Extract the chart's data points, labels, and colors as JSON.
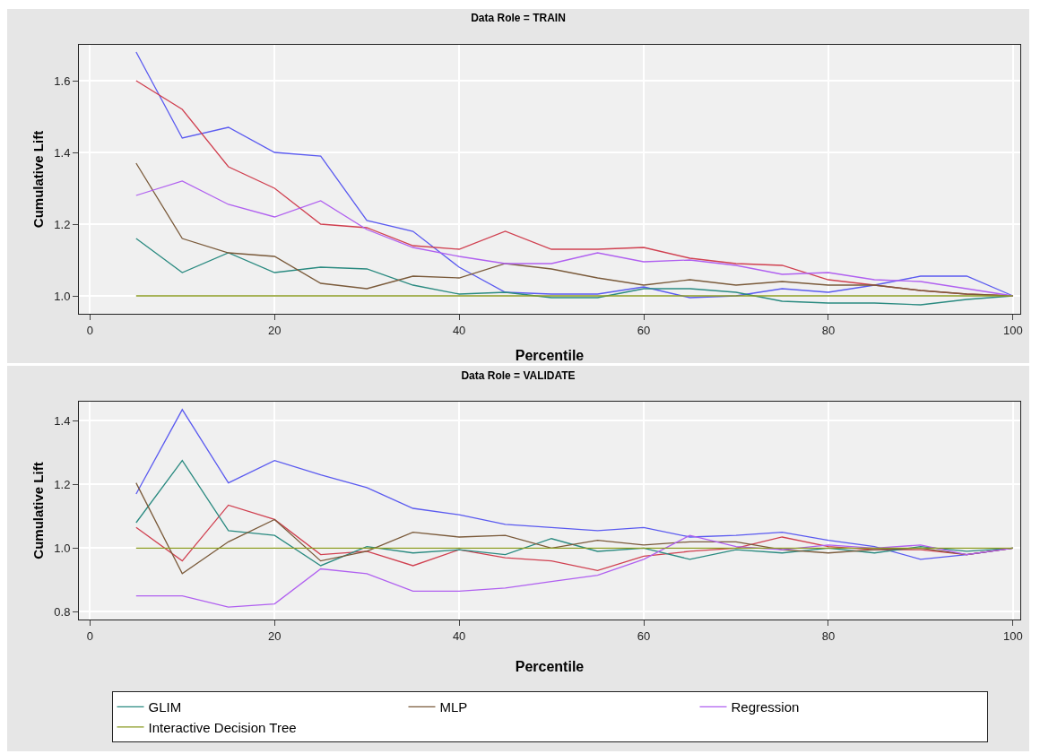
{
  "chart_data": [
    {
      "type": "line",
      "title": "Data Role = TRAIN",
      "xlabel": "Percentile",
      "ylabel": "Cumulative Lift",
      "x": [
        5,
        10,
        15,
        20,
        25,
        30,
        35,
        40,
        45,
        50,
        55,
        60,
        65,
        70,
        75,
        80,
        85,
        90,
        95,
        100
      ],
      "xlim": [
        -1.2,
        100.8
      ],
      "xticks": [
        0,
        20,
        40,
        60,
        80,
        100
      ],
      "ylim": [
        0.95,
        1.7
      ],
      "yticks": [
        {
          "value": 1,
          "label": "1.0"
        },
        1.2,
        1.4,
        1.6
      ],
      "grid": true,
      "legend": false,
      "series": [
        {
          "color": "#5a5af0",
          "values": [
            1.68,
            1.44,
            1.47,
            1.4,
            1.39,
            1.21,
            1.18,
            1.08,
            1.01,
            1.005,
            1.005,
            1.025,
            0.995,
            1.0,
            1.02,
            1.01,
            1.03,
            1.055,
            1.055,
            1.0
          ]
        },
        {
          "color": "#d04050",
          "values": [
            1.6,
            1.52,
            1.36,
            1.3,
            1.2,
            1.19,
            1.14,
            1.13,
            1.18,
            1.13,
            1.13,
            1.135,
            1.105,
            1.09,
            1.085,
            1.045,
            1.03,
            1.015,
            1.005,
            1.0
          ]
        },
        {
          "color": "#2a8a80",
          "values": [
            1.16,
            1.065,
            1.12,
            1.065,
            1.08,
            1.075,
            1.03,
            1.005,
            1.01,
            0.995,
            0.995,
            1.02,
            1.02,
            1.01,
            0.985,
            0.98,
            0.98,
            0.975,
            0.99,
            1.0
          ]
        },
        {
          "color": "#7a5a3a",
          "values": [
            1.37,
            1.16,
            1.12,
            1.11,
            1.035,
            1.02,
            1.055,
            1.05,
            1.09,
            1.075,
            1.05,
            1.03,
            1.045,
            1.03,
            1.04,
            1.03,
            1.03,
            1.015,
            1.005,
            1.0
          ]
        },
        {
          "color": "#b060f0",
          "values": [
            1.28,
            1.32,
            1.255,
            1.22,
            1.265,
            1.185,
            1.135,
            1.11,
            1.09,
            1.09,
            1.12,
            1.095,
            1.1,
            1.085,
            1.06,
            1.065,
            1.045,
            1.04,
            1.02,
            1.0
          ]
        },
        {
          "color": "#8a9a20",
          "values": [
            1,
            1,
            1,
            1,
            1,
            1,
            1,
            1,
            1,
            1,
            1,
            1,
            1,
            1,
            1,
            1,
            1,
            1,
            1,
            1
          ]
        }
      ]
    },
    {
      "type": "line",
      "title": "Data Role = VALIDATE",
      "xlabel": "Percentile",
      "ylabel": "Cumulative Lift",
      "x": [
        5,
        10,
        15,
        20,
        25,
        30,
        35,
        40,
        45,
        50,
        55,
        60,
        65,
        70,
        75,
        80,
        85,
        90,
        95,
        100
      ],
      "xlim": [
        -1.2,
        100.8
      ],
      "xticks": [
        0,
        20,
        40,
        60,
        80,
        100
      ],
      "ylim": [
        0.776,
        1.46
      ],
      "yticks": [
        0.8,
        {
          "value": 1,
          "label": "1.0"
        },
        1.2,
        1.4
      ],
      "grid": true,
      "legend": "bottom",
      "series": [
        {
          "color": "#5a5af0",
          "values": [
            1.17,
            1.435,
            1.205,
            1.275,
            1.23,
            1.19,
            1.125,
            1.105,
            1.075,
            1.065,
            1.055,
            1.065,
            1.035,
            1.04,
            1.05,
            1.025,
            1.005,
            0.965,
            0.98,
            1.0
          ]
        },
        {
          "color": "#d04050",
          "values": [
            1.065,
            0.96,
            1.135,
            1.09,
            0.98,
            0.99,
            0.945,
            0.995,
            0.97,
            0.96,
            0.93,
            0.975,
            0.99,
            1.0,
            1.035,
            1.005,
            0.995,
            0.995,
            0.98,
            1.0
          ]
        },
        {
          "name": "GLIM",
          "color": "#2a8a80",
          "values": [
            1.08,
            1.275,
            1.055,
            1.04,
            0.945,
            1.005,
            0.985,
            0.995,
            0.98,
            1.03,
            0.99,
            1.0,
            0.965,
            0.995,
            0.985,
            1.0,
            0.985,
            1.005,
            0.99,
            1.0
          ]
        },
        {
          "name": "MLP",
          "color": "#7a5a3a",
          "values": [
            1.205,
            0.92,
            1.02,
            1.09,
            0.96,
            0.99,
            1.05,
            1.035,
            1.04,
            1.0,
            1.025,
            1.01,
            1.02,
            1.02,
            0.995,
            0.985,
            0.995,
            1.0,
            0.98,
            1.0
          ]
        },
        {
          "name": "Regression",
          "color": "#b060f0",
          "values": [
            0.85,
            0.85,
            0.815,
            0.825,
            0.935,
            0.92,
            0.865,
            0.865,
            0.875,
            0.895,
            0.915,
            0.965,
            1.04,
            1.005,
            0.995,
            1.01,
            1.0,
            1.01,
            0.98,
            1.0
          ]
        },
        {
          "name": "Interactive Decision Tree",
          "color": "#8a9a20",
          "values": [
            1,
            1,
            1,
            1,
            1,
            1,
            1,
            1,
            1,
            1,
            1,
            1,
            1,
            1,
            1,
            1,
            1,
            1,
            1,
            1
          ]
        }
      ]
    }
  ]
}
